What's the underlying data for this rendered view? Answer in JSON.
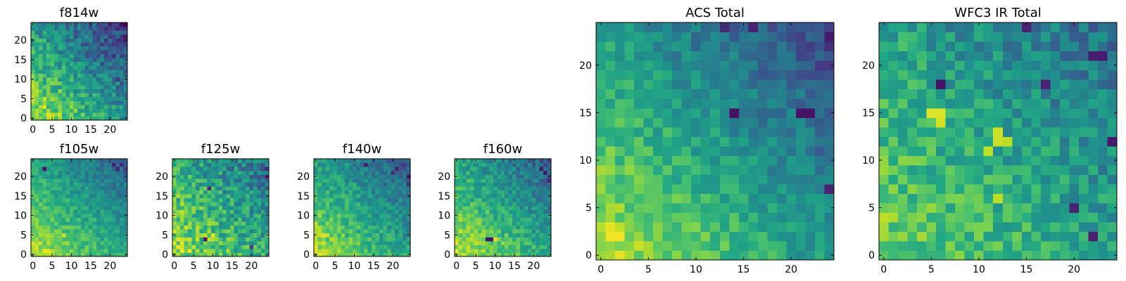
{
  "colormap": "viridis",
  "chart_data": [
    {
      "type": "heatmap",
      "title": "f814w",
      "xticks": [
        0,
        5,
        10,
        15,
        20
      ],
      "yticks": [
        0,
        5,
        10,
        15,
        20
      ],
      "xlim": [
        0,
        25
      ],
      "ylim": [
        0,
        25
      ],
      "grid_size": [
        25,
        25
      ],
      "gradient": {
        "base": 0.52,
        "gx": -0.38,
        "gy": -0.38,
        "noise": 0.16,
        "seed": 11
      },
      "hot_spots": [],
      "dark_spots": [
        [
          22,
          10,
          0.15
        ],
        [
          21,
          16,
          0.12
        ],
        [
          24,
          19,
          0.18
        ],
        [
          19,
          22,
          0.2
        ],
        [
          22,
          24,
          0.2
        ]
      ]
    },
    {
      "type": "heatmap",
      "title": "f105w",
      "xticks": [
        0,
        5,
        10,
        15,
        20
      ],
      "yticks": [
        0,
        5,
        10,
        15,
        20
      ],
      "xlim": [
        0,
        25
      ],
      "ylim": [
        0,
        25
      ],
      "grid_size": [
        25,
        25
      ],
      "gradient": {
        "base": 0.6,
        "gx": -0.28,
        "gy": -0.3,
        "noise": 0.1,
        "seed": 23
      },
      "hot_spots": [
        [
          3,
          1,
          0.98
        ],
        [
          4,
          1,
          0.98
        ],
        [
          8,
          5,
          0.9
        ]
      ],
      "dark_spots": [
        [
          3,
          22,
          0.08
        ],
        [
          21,
          23,
          0.1
        ],
        [
          22,
          22,
          0.12
        ],
        [
          23,
          23,
          0.1
        ],
        [
          24,
          22,
          0.15
        ]
      ]
    },
    {
      "type": "heatmap",
      "title": "f125w",
      "xticks": [
        0,
        5,
        10,
        15,
        20
      ],
      "yticks": [
        0,
        5,
        10,
        15,
        20
      ],
      "xlim": [
        0,
        25
      ],
      "ylim": [
        0,
        25
      ],
      "grid_size": [
        25,
        25
      ],
      "gradient": {
        "base": 0.62,
        "gx": -0.25,
        "gy": -0.25,
        "noise": 0.18,
        "seed": 37
      },
      "hot_spots": [
        [
          10,
          5,
          0.95
        ],
        [
          9,
          4,
          0.92
        ]
      ],
      "dark_spots": [
        [
          8,
          4,
          0.05
        ],
        [
          9,
          17,
          0.1
        ],
        [
          24,
          20,
          0.1
        ],
        [
          24,
          22,
          0.12
        ],
        [
          20,
          2,
          0.2
        ]
      ]
    },
    {
      "type": "heatmap",
      "title": "f140w",
      "xticks": [
        0,
        5,
        10,
        15,
        20
      ],
      "yticks": [
        0,
        5,
        10,
        15,
        20
      ],
      "xlim": [
        0,
        25
      ],
      "ylim": [
        0,
        25
      ],
      "grid_size": [
        25,
        25
      ],
      "gradient": {
        "base": 0.58,
        "gx": -0.3,
        "gy": -0.32,
        "noise": 0.12,
        "seed": 51
      },
      "hot_spots": [
        [
          2,
          5,
          0.95
        ],
        [
          3,
          5,
          0.92
        ]
      ],
      "dark_spots": [
        [
          13,
          23,
          0.08
        ],
        [
          20,
          21,
          0.12
        ],
        [
          21,
          22,
          0.1
        ],
        [
          24,
          20,
          0.1
        ],
        [
          24,
          18,
          0.15
        ]
      ]
    },
    {
      "type": "heatmap",
      "title": "f160w",
      "xticks": [
        0,
        5,
        10,
        15,
        20
      ],
      "yticks": [
        0,
        5,
        10,
        15,
        20
      ],
      "xlim": [
        0,
        25
      ],
      "ylim": [
        0,
        25
      ],
      "grid_size": [
        25,
        25
      ],
      "gradient": {
        "base": 0.6,
        "gx": -0.3,
        "gy": -0.32,
        "noise": 0.12,
        "seed": 67
      },
      "hot_spots": [
        [
          10,
          4,
          0.95
        ]
      ],
      "dark_spots": [
        [
          8,
          4,
          0.05
        ],
        [
          9,
          4,
          0.05
        ],
        [
          22,
          22,
          0.08
        ],
        [
          23,
          21,
          0.08
        ],
        [
          24,
          19,
          0.12
        ]
      ]
    },
    {
      "type": "heatmap",
      "title": "ACS Total",
      "xticks": [
        0,
        5,
        10,
        15,
        20
      ],
      "yticks": [
        0,
        5,
        10,
        15,
        20
      ],
      "xlim": [
        0,
        25
      ],
      "ylim": [
        0,
        25
      ],
      "grid_size": [
        25,
        25
      ],
      "gradient": {
        "base": 0.55,
        "gx": -0.36,
        "gy": -0.34,
        "noise": 0.11,
        "seed": 79
      },
      "hot_spots": [
        [
          1,
          2,
          0.98
        ],
        [
          2,
          2,
          0.98
        ],
        [
          1,
          3,
          0.96
        ]
      ],
      "dark_spots": [
        [
          14,
          15,
          0.05
        ],
        [
          21,
          15,
          0.05
        ],
        [
          22,
          15,
          0.05
        ],
        [
          24,
          23,
          0.08
        ],
        [
          24,
          7,
          0.1
        ],
        [
          16,
          24,
          0.1
        ],
        [
          13,
          24,
          0.12
        ]
      ]
    },
    {
      "type": "heatmap",
      "title": "WFC3 IR Total",
      "xticks": [
        0,
        5,
        10,
        15,
        20
      ],
      "yticks": [
        0,
        5,
        10,
        15,
        20
      ],
      "xlim": [
        0,
        25
      ],
      "ylim": [
        0,
        25
      ],
      "grid_size": [
        25,
        25
      ],
      "gradient": {
        "base": 0.58,
        "gx": -0.22,
        "gy": -0.22,
        "noise": 0.14,
        "seed": 97
      },
      "hot_spots": [
        [
          5,
          15,
          0.95
        ],
        [
          6,
          15,
          0.95
        ],
        [
          6,
          14,
          0.93
        ],
        [
          12,
          12,
          0.92
        ],
        [
          12,
          13,
          0.92
        ],
        [
          13,
          12,
          0.9
        ],
        [
          11,
          11,
          0.9
        ],
        [
          12,
          6,
          0.9
        ]
      ],
      "dark_spots": [
        [
          6,
          18,
          0.05
        ],
        [
          20,
          5,
          0.1
        ],
        [
          22,
          21,
          0.08
        ],
        [
          23,
          21,
          0.08
        ],
        [
          24,
          12,
          0.08
        ],
        [
          22,
          2,
          0.1
        ],
        [
          17,
          18,
          0.1
        ],
        [
          15,
          24,
          0.1
        ]
      ]
    }
  ]
}
